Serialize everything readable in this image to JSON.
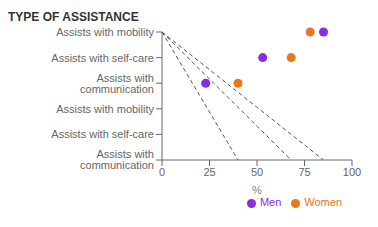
{
  "chart_data": {
    "type": "dot",
    "title": "TYPE OF ASSISTANCE",
    "categories": [
      "Assists with mobility",
      "Assists with self-care",
      "Assists with communication"
    ],
    "series": [
      {
        "name": "Men",
        "color": "#8B2BE2",
        "values": [
          85,
          53,
          23
        ]
      },
      {
        "name": "Women",
        "color": "#E87722",
        "values": [
          78,
          68,
          40
        ]
      }
    ],
    "xlabel": "%",
    "xlim": [
      0,
      100
    ],
    "xticks": [
      0,
      25,
      50,
      75,
      100
    ],
    "legend": "lower right",
    "grid": false
  }
}
